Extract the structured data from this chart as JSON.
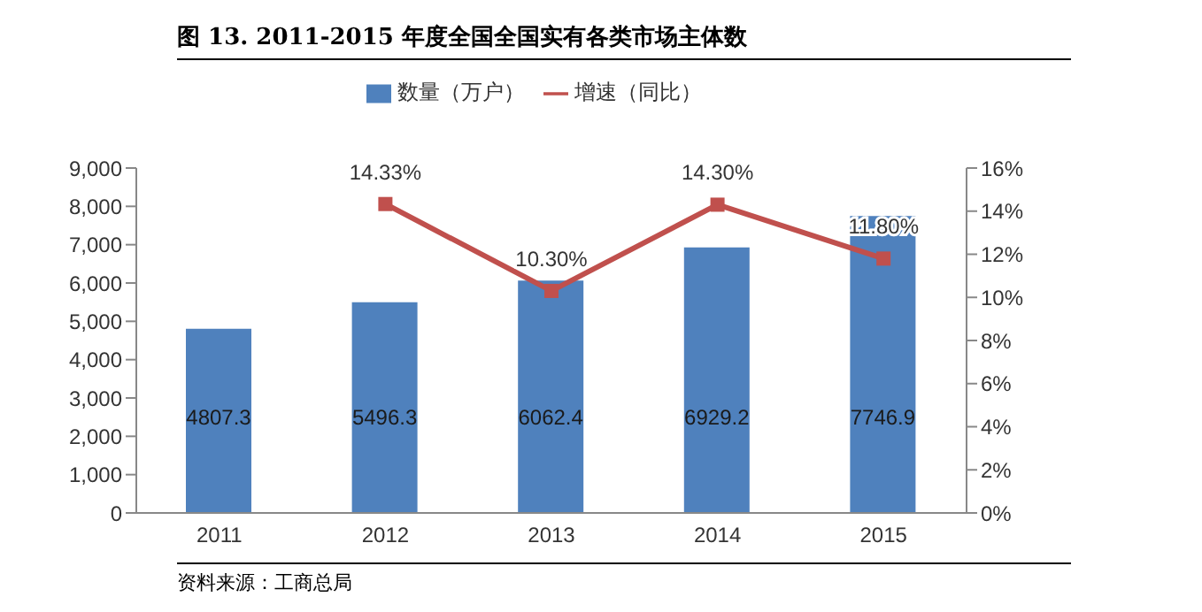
{
  "chart_data": {
    "type": "bar",
    "title": "图 13. 2011-2015 年度全国全国实有各类市场主体数",
    "categories": [
      "2011",
      "2012",
      "2013",
      "2014",
      "2015"
    ],
    "series": [
      {
        "name": "数量（万户）",
        "color": "#4f81bd",
        "values": [
          4807.3,
          5496.3,
          6062.4,
          6929.2,
          7746.9
        ],
        "value_labels": [
          "4807.3",
          "5496.3",
          "6062.4",
          "6929.2",
          "7746.9"
        ]
      },
      {
        "name": "增速（同比）",
        "type": "line",
        "axis": "y2",
        "color": "#c0504d",
        "values": [
          null,
          14.33,
          10.3,
          14.3,
          11.8
        ],
        "value_labels": [
          null,
          "14.33%",
          "10.30%",
          "14.30%",
          "11.80%"
        ]
      }
    ],
    "ylim": [
      0,
      9000
    ],
    "yticks": [
      {
        "value": 0,
        "label": "0"
      },
      {
        "value": 1000,
        "label": "1,000"
      },
      {
        "value": 2000,
        "label": "2,000"
      },
      {
        "value": 3000,
        "label": "3,000"
      },
      {
        "value": 4000,
        "label": "4,000"
      },
      {
        "value": 5000,
        "label": "5,000"
      },
      {
        "value": 6000,
        "label": "6,000"
      },
      {
        "value": 7000,
        "label": "7,000"
      },
      {
        "value": 8000,
        "label": "8,000"
      },
      {
        "value": 9000,
        "label": "9,000"
      }
    ],
    "y2lim": [
      0,
      16
    ],
    "y2ticks": [
      {
        "value": 0,
        "label": "0%"
      },
      {
        "value": 2,
        "label": "2%"
      },
      {
        "value": 4,
        "label": "4%"
      },
      {
        "value": 6,
        "label": "6%"
      },
      {
        "value": 8,
        "label": "8%"
      },
      {
        "value": 10,
        "label": "10%"
      },
      {
        "value": 12,
        "label": "12%"
      },
      {
        "value": 14,
        "label": "14%"
      },
      {
        "value": 16,
        "label": "16%"
      }
    ],
    "legend": "top",
    "marker": "square",
    "line_style": "solid",
    "annotations": [
      "资料来源：工商总局"
    ]
  }
}
